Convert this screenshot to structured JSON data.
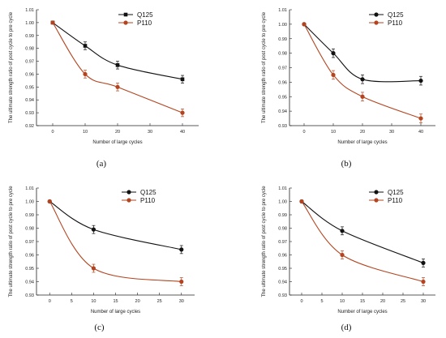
{
  "chart_data": [
    {
      "type": "line",
      "panel": "(a)",
      "x": [
        0,
        10,
        20,
        40
      ],
      "xlim": [
        -5,
        45
      ],
      "xticks": [
        0,
        10,
        20,
        30,
        40
      ],
      "ylim": [
        0.92,
        1.01
      ],
      "yticks": [
        0.92,
        0.93,
        0.94,
        0.95,
        0.96,
        0.97,
        0.98,
        0.99,
        1.0,
        1.01
      ],
      "xlabel": "Number of large cycles",
      "ylabel": "The ultimate strength ratio of post cycle to pre cycle",
      "legend_position": "top-right",
      "series": [
        {
          "name": "Q125",
          "values": [
            1.0,
            0.982,
            0.967,
            0.956
          ],
          "errors": [
            0,
            0.003,
            0.003,
            0.003
          ],
          "color": "#111111",
          "marker": "square"
        },
        {
          "name": "P110",
          "values": [
            1.0,
            0.96,
            0.95,
            0.93
          ],
          "errors": [
            0,
            0.003,
            0.003,
            0.003
          ],
          "color": "#b3441f",
          "marker": "circle"
        }
      ]
    },
    {
      "type": "line",
      "panel": "(b)",
      "x": [
        0,
        10,
        20,
        40
      ],
      "xlim": [
        -5,
        45
      ],
      "xticks": [
        0,
        10,
        20,
        30,
        40
      ],
      "ylim": [
        0.93,
        1.01
      ],
      "yticks": [
        0.93,
        0.94,
        0.95,
        0.96,
        0.97,
        0.98,
        0.99,
        1.0,
        1.01
      ],
      "xlabel": "Number of large cycles",
      "ylabel": "The ultimate strength ratio of  post cycle to pre cycle",
      "legend_position": "top-right",
      "series": [
        {
          "name": "Q125",
          "values": [
            1.0,
            0.98,
            0.962,
            0.961
          ],
          "errors": [
            0,
            0.003,
            0.003,
            0.003
          ],
          "color": "#111111",
          "marker": "circle"
        },
        {
          "name": "P110",
          "values": [
            1.0,
            0.965,
            0.95,
            0.935
          ],
          "errors": [
            0,
            0.003,
            0.003,
            0.003
          ],
          "color": "#b3441f",
          "marker": "circle"
        }
      ]
    },
    {
      "type": "line",
      "panel": "(c)",
      "x": [
        0,
        10,
        30
      ],
      "xlim": [
        -3,
        33
      ],
      "xticks": [
        0,
        5,
        10,
        15,
        20,
        25,
        30
      ],
      "ylim": [
        0.93,
        1.01
      ],
      "yticks": [
        0.93,
        0.94,
        0.95,
        0.96,
        0.97,
        0.98,
        0.99,
        1.0,
        1.01
      ],
      "xlabel": "Number of large cycles",
      "ylabel": "The ultimate strength ratio of post cycle to pre cycle",
      "legend_position": "top-right",
      "series": [
        {
          "name": "Q125",
          "values": [
            1.0,
            0.979,
            0.964
          ],
          "errors": [
            0,
            0.003,
            0.003
          ],
          "color": "#111111",
          "marker": "circle"
        },
        {
          "name": "P110",
          "values": [
            1.0,
            0.95,
            0.94
          ],
          "errors": [
            0,
            0.003,
            0.003
          ],
          "color": "#b3441f",
          "marker": "circle"
        }
      ]
    },
    {
      "type": "line",
      "panel": "(d)",
      "x": [
        0,
        10,
        30
      ],
      "xlim": [
        -3,
        33
      ],
      "xticks": [
        0,
        5,
        10,
        15,
        20,
        25,
        30
      ],
      "ylim": [
        0.93,
        1.01
      ],
      "yticks": [
        0.93,
        0.94,
        0.95,
        0.96,
        0.97,
        0.98,
        0.99,
        1.0,
        1.01
      ],
      "xlabel": "Number of large cycles",
      "ylabel": "The ultimate strength ratio of post cycle to pre cycle",
      "legend_position": "top-right",
      "series": [
        {
          "name": "Q125",
          "values": [
            1.0,
            0.978,
            0.954
          ],
          "errors": [
            0,
            0.003,
            0.003
          ],
          "color": "#111111",
          "marker": "circle"
        },
        {
          "name": "P110",
          "values": [
            1.0,
            0.96,
            0.94
          ],
          "errors": [
            0,
            0.003,
            0.003
          ],
          "color": "#b3441f",
          "marker": "circle"
        }
      ]
    }
  ]
}
